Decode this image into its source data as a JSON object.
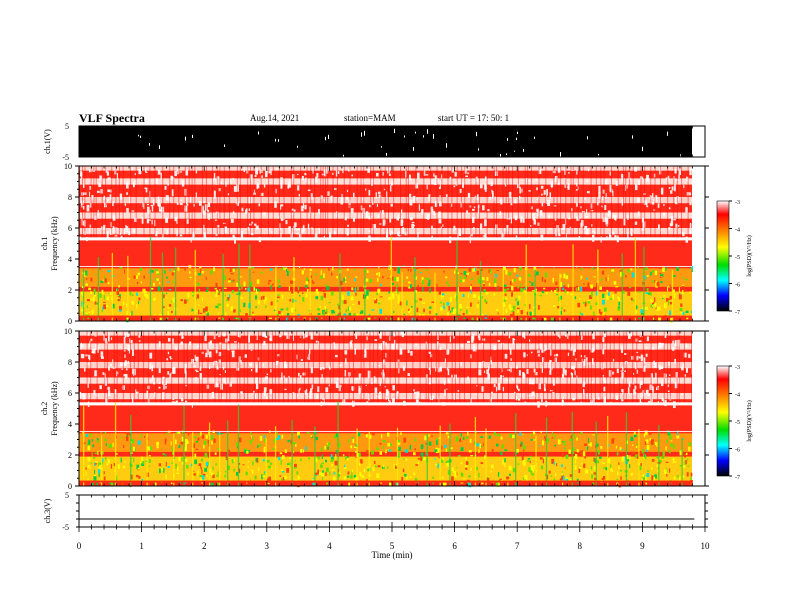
{
  "header": {
    "title": "VLF Spectra",
    "date": "Aug.14, 2021",
    "station": "station=MAM",
    "start": "start UT =  17: 50: 1"
  },
  "colors": {
    "cb_top": "#ffffff",
    "cb_red": "#ff0000",
    "cb_yellow": "#ffff00",
    "cb_green": "#00dd00",
    "cb_cyan": "#00ffff",
    "cb_blue": "#0000ff",
    "cb_bottom": "#000000"
  },
  "chart_data": [
    {
      "type": "line",
      "ylabel": "ch.1(V)",
      "ylim": [
        -5,
        5
      ],
      "yticks": [
        "5",
        "-5"
      ],
      "xlim": [
        0,
        10
      ],
      "description_series": "waveform"
    },
    {
      "type": "heatmap",
      "ylabel": "ch.1\nFrequency (kHz)",
      "ylabel_lines": [
        "ch.1",
        "Frequency (kHz)"
      ],
      "ylim": [
        0,
        10
      ],
      "yticks": [
        "0",
        "2",
        "4",
        "6",
        "8",
        "10"
      ],
      "xlim": [
        0,
        10
      ],
      "colorbar": {
        "label": "log(PSD)(V²/Hz)",
        "ticks": [
          "-3",
          "-4",
          "-5",
          "-6",
          "-7"
        ],
        "range": [
          -7,
          -3
        ]
      }
    },
    {
      "type": "heatmap",
      "ylabel_lines": [
        "ch.2",
        "Frequency (kHz)"
      ],
      "ylim": [
        0,
        10
      ],
      "yticks": [
        "0",
        "2",
        "4",
        "6",
        "8",
        "10"
      ],
      "xlim": [
        0,
        10
      ],
      "colorbar": {
        "label": "log(PSD)(V²/Hz)",
        "ticks": [
          "-3",
          "-4",
          "-5",
          "-6",
          "-7"
        ],
        "range": [
          -7,
          -3
        ]
      }
    },
    {
      "type": "line",
      "ylabel": "ch.3(V)",
      "ylim": [
        -5,
        5
      ],
      "yticks": [
        "5",
        "-5"
      ],
      "xlim": [
        0,
        10
      ],
      "x": [
        0,
        9.83
      ],
      "y": [
        -2.5,
        -2.5
      ]
    }
  ],
  "xaxis": {
    "label": "Time (min)",
    "ticks": [
      "0",
      "1",
      "2",
      "3",
      "4",
      "5",
      "6",
      "7",
      "8",
      "9",
      "10"
    ]
  }
}
